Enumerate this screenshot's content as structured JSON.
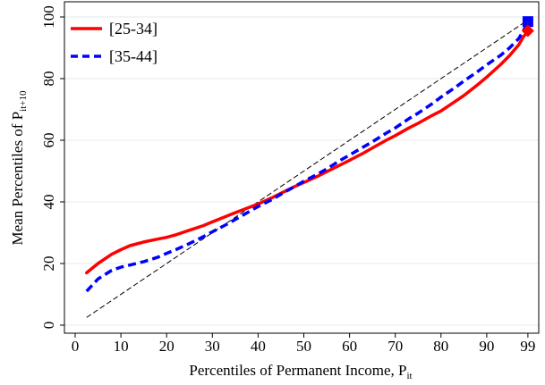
{
  "chart_data": {
    "type": "line",
    "xlabel": {
      "main": "Percentiles of Permanent Income, P",
      "sub": "it"
    },
    "ylabel": {
      "main": "Mean Percentiles of P",
      "sub": "it+10"
    },
    "xlim": [
      0,
      100
    ],
    "ylim": [
      0,
      100
    ],
    "x_ticks": [
      0,
      10,
      20,
      30,
      40,
      50,
      60,
      70,
      80,
      90,
      99
    ],
    "y_ticks": [
      0,
      20,
      40,
      60,
      80,
      100
    ],
    "grid": "horizontal",
    "legend_position": "top-left",
    "reference_line": {
      "style": "dashed",
      "color": "#000000",
      "x": [
        2.5,
        99
      ],
      "y": [
        2.5,
        99
      ]
    },
    "series": [
      {
        "name": "[25-34]",
        "color": "#ff0000",
        "style": "solid",
        "end_marker": "diamond",
        "x": [
          2.5,
          5,
          8,
          10,
          12,
          15,
          18,
          20,
          22,
          25,
          28,
          30,
          33,
          35,
          38,
          40,
          43,
          45,
          48,
          50,
          53,
          55,
          58,
          60,
          63,
          65,
          68,
          70,
          73,
          75,
          78,
          80,
          83,
          85,
          88,
          90,
          93,
          95,
          97,
          98,
          99
        ],
        "y": [
          17,
          20,
          23,
          24.5,
          25.8,
          27,
          27.9,
          28.5,
          29.3,
          30.8,
          32.3,
          33.5,
          35.3,
          36.5,
          38.2,
          39.3,
          41.3,
          42.8,
          45,
          46.3,
          48.3,
          49.8,
          52,
          53.5,
          55.8,
          57.5,
          60,
          61.5,
          64,
          65.5,
          68,
          69.5,
          72.5,
          74.5,
          78,
          80.5,
          84.5,
          87.5,
          91,
          93.5,
          95.5
        ]
      },
      {
        "name": "[35-44]",
        "color": "#0000ff",
        "style": "dashed",
        "end_marker": "square",
        "x": [
          2.5,
          5,
          8,
          10,
          12,
          15,
          18,
          20,
          22,
          25,
          28,
          30,
          33,
          35,
          38,
          40,
          43,
          45,
          48,
          50,
          53,
          55,
          58,
          60,
          63,
          65,
          68,
          70,
          73,
          75,
          78,
          80,
          83,
          85,
          88,
          90,
          93,
          95,
          97,
          98,
          99
        ],
        "y": [
          11,
          15,
          17.8,
          18.8,
          19.5,
          20.6,
          22,
          23.3,
          24.5,
          26.5,
          28.7,
          30.3,
          32.6,
          34.3,
          36.8,
          38.5,
          40.7,
          42.5,
          45,
          46.7,
          49,
          50.7,
          53.5,
          55.2,
          57.8,
          59.5,
          62.3,
          64,
          67,
          68.8,
          71.8,
          74,
          77,
          79.2,
          82.3,
          84.5,
          87.5,
          90,
          93,
          95.5,
          98.5
        ]
      }
    ]
  }
}
